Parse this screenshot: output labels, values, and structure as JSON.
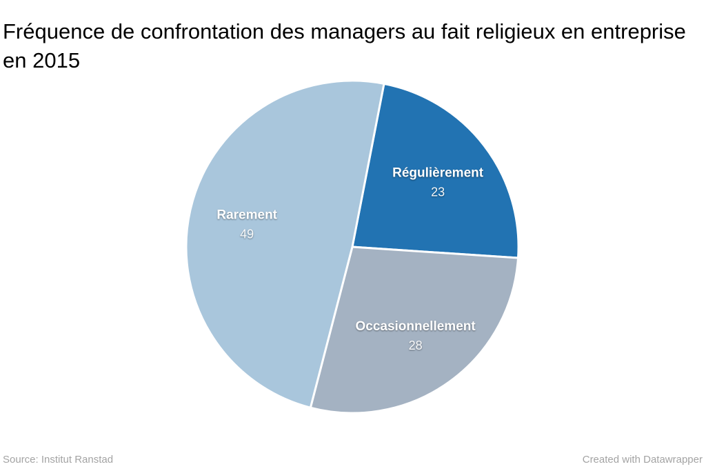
{
  "chart_data": {
    "type": "pie",
    "title": "Fréquence de confrontation des managers au fait religieux en entreprise en 2015",
    "slices": [
      {
        "label": "Régulièrement",
        "value": 23,
        "color": "#2273b2"
      },
      {
        "label": "Occasionnellement",
        "value": 28,
        "color": "#a4b2c2"
      },
      {
        "label": "Rarement",
        "value": 49,
        "color": "#a9c6dc"
      }
    ],
    "total": 100,
    "start_angle_deg": 11,
    "direction": "clockwise",
    "legend": "none",
    "label_text_color": "#ffffff",
    "slice_separator_color": "#ffffff"
  },
  "footer": {
    "source": "Source: Institut Ranstad",
    "attribution": "Created with Datawrapper"
  }
}
